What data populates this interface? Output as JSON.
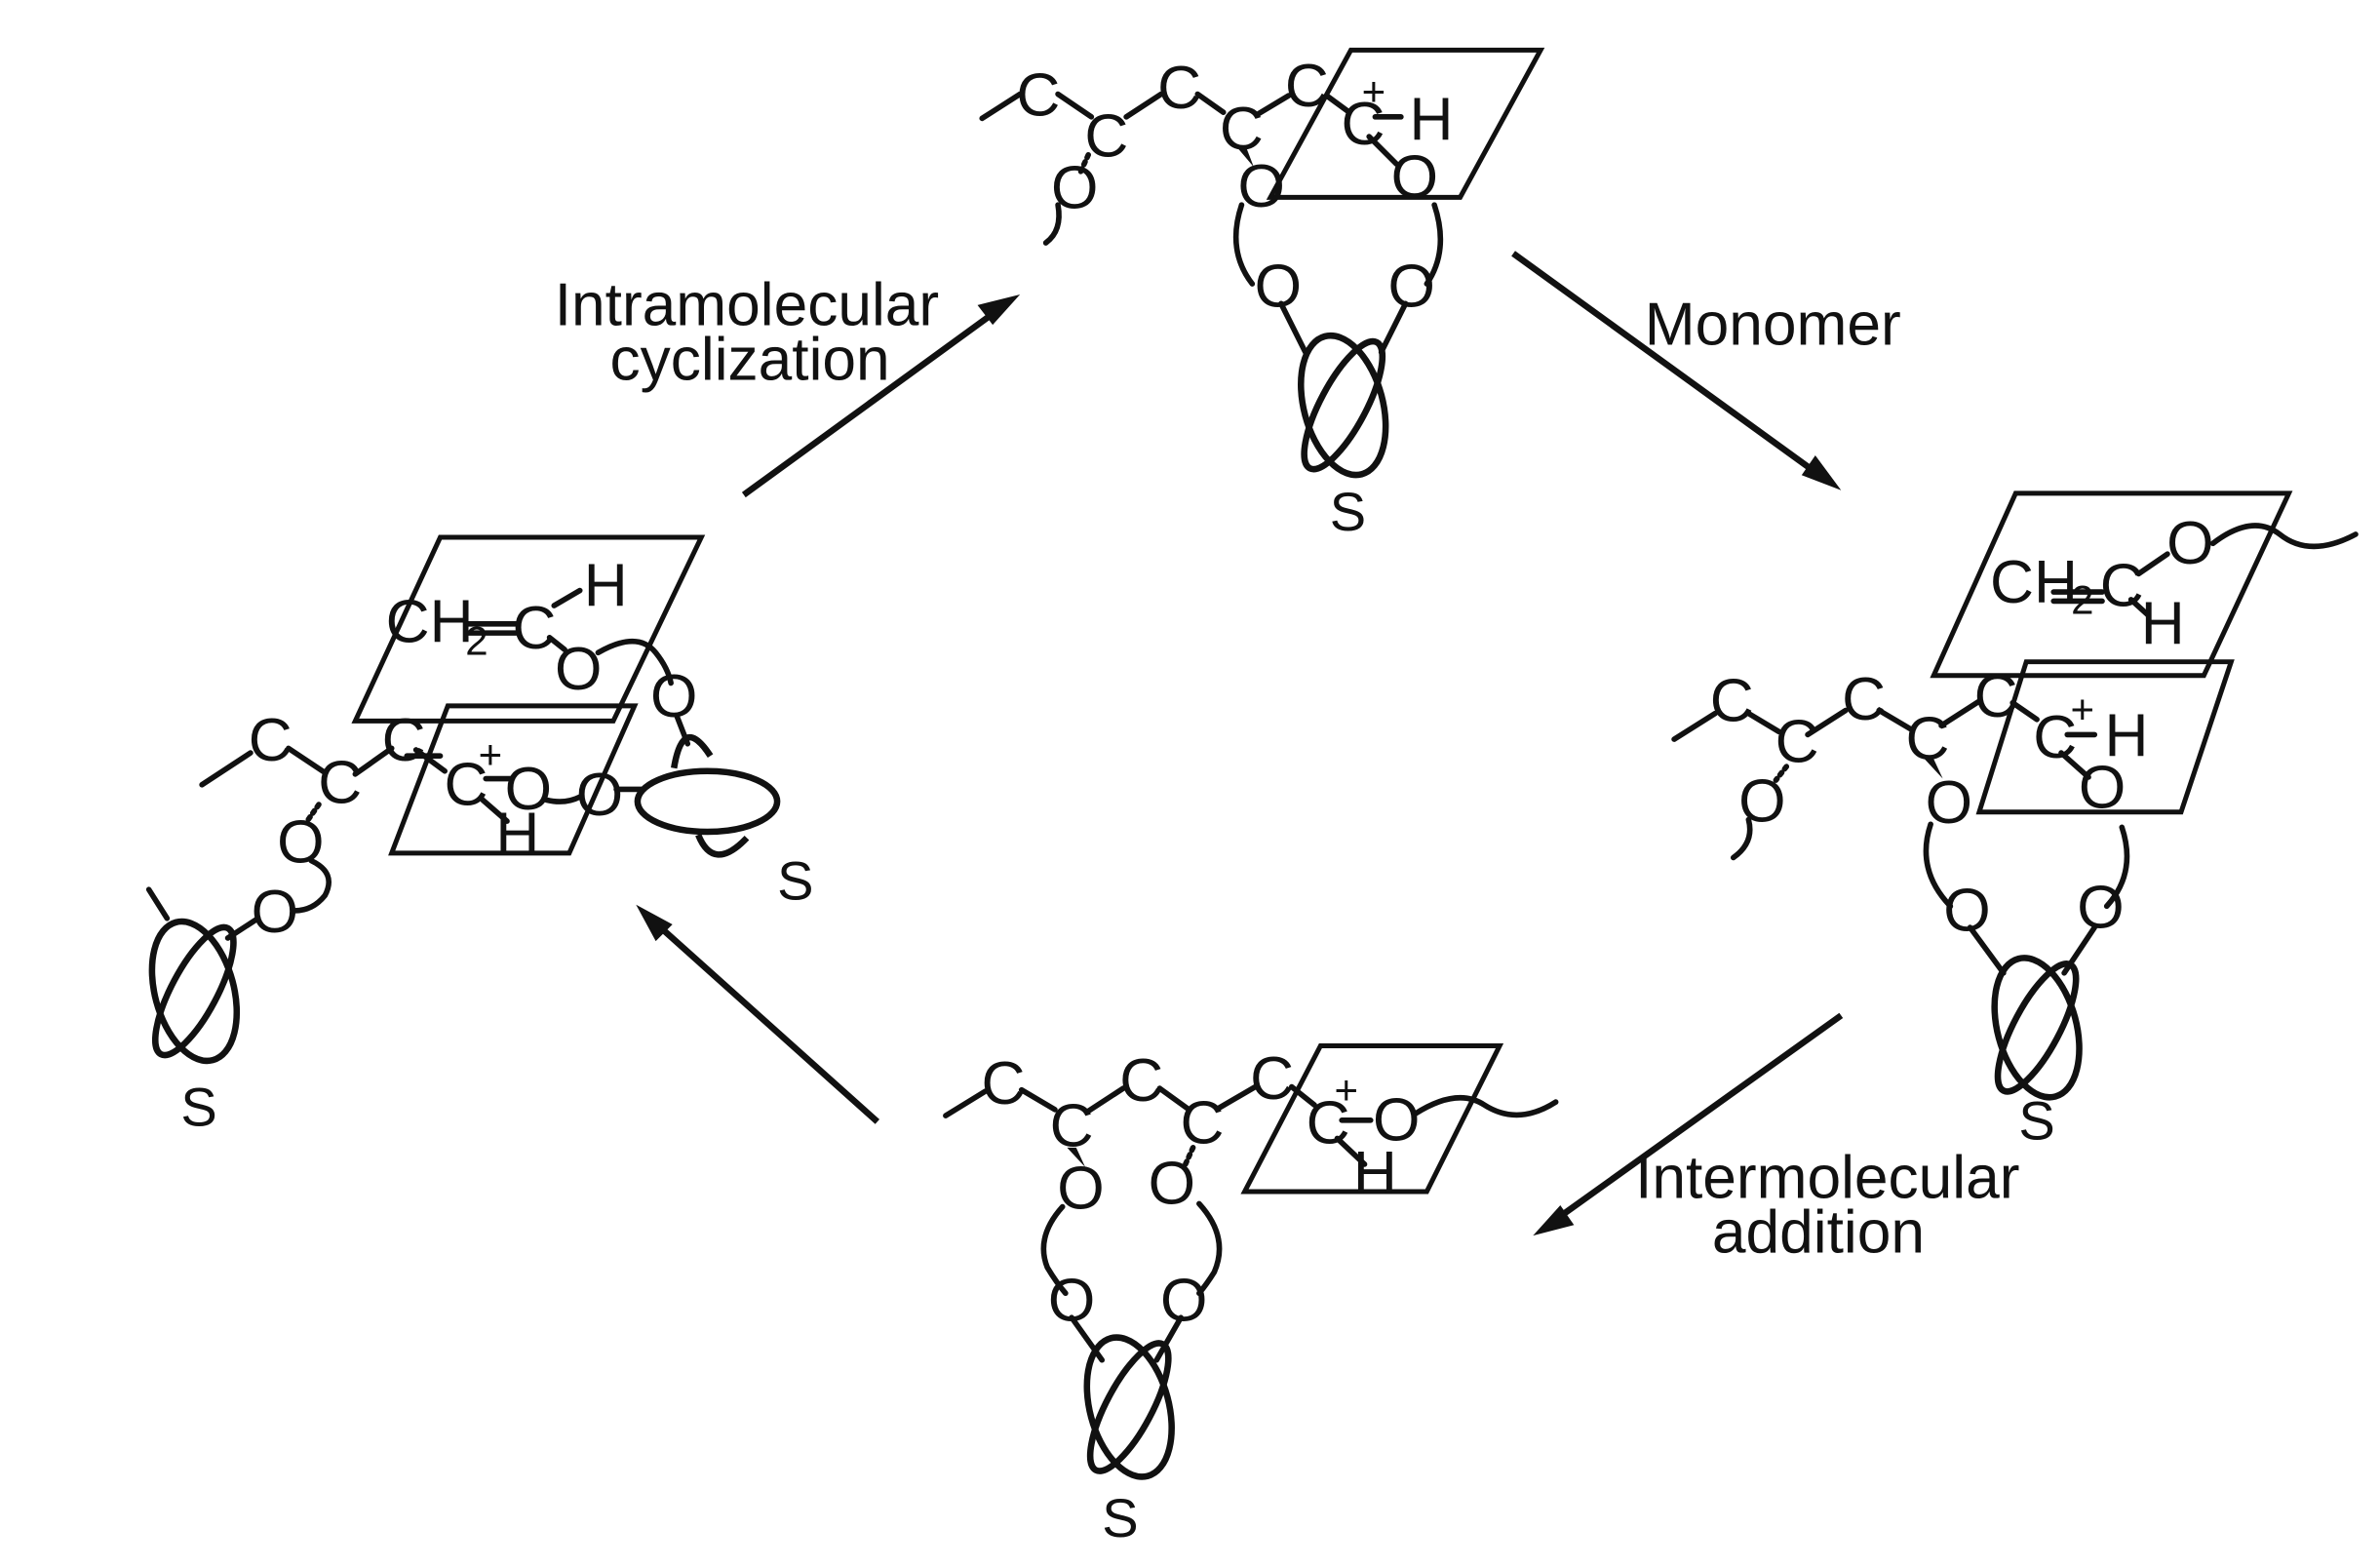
{
  "atoms": {
    "carbon": "C",
    "oxygen": "O",
    "hydrogen": "H",
    "plus": "+",
    "ch2": "CH",
    "ch2_sub": "2",
    "support": "S"
  },
  "arrows": {
    "intramolecular": [
      "Intramolecular",
      "cyclization"
    ],
    "monomer": [
      "Monomer"
    ],
    "intermolecular": [
      "Intermolecular",
      "addition"
    ]
  }
}
